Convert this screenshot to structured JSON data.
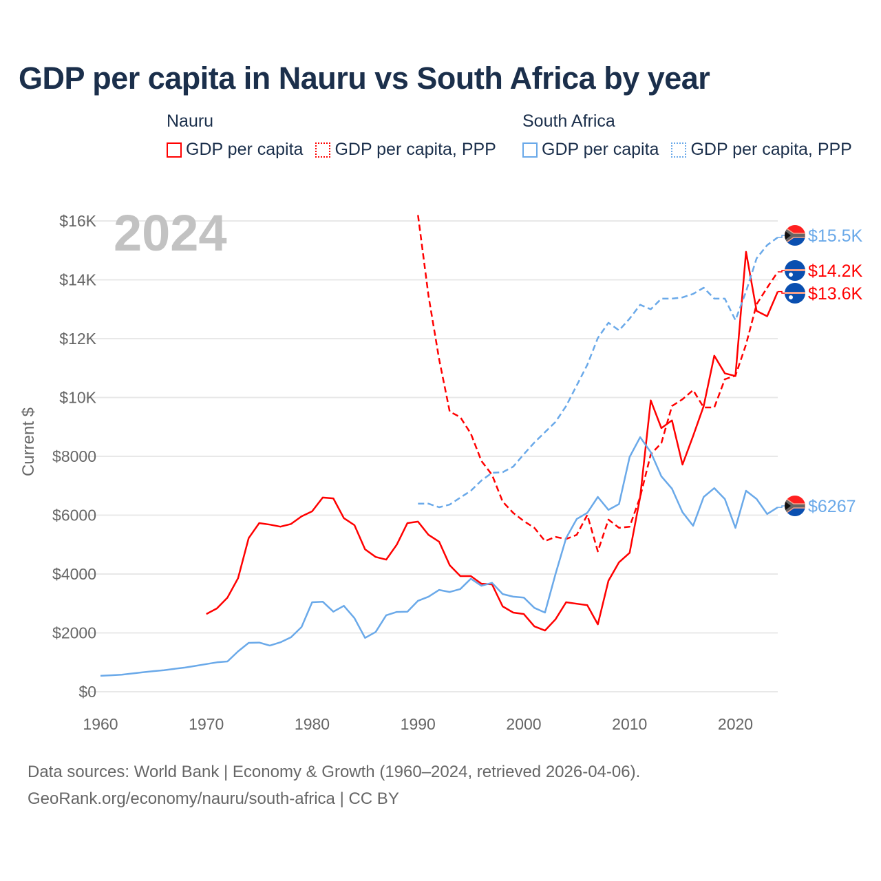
{
  "title": "GDP per capita in Nauru vs South Africa by year",
  "legend": [
    {
      "group": "Nauru",
      "items": [
        {
          "label": "GDP per capita",
          "style": "solid",
          "color": "#ff0000"
        },
        {
          "label": "GDP per capita, PPP",
          "style": "dotted",
          "color": "#ff0000"
        }
      ]
    },
    {
      "group": "South Africa",
      "items": [
        {
          "label": "GDP per capita",
          "style": "solid",
          "color": "#6aa9e9"
        },
        {
          "label": "GDP per capita, PPP",
          "style": "dotted",
          "color": "#6aa9e9"
        }
      ]
    }
  ],
  "current_year": "2024",
  "footer": {
    "line1": "Data sources: World Bank | Economy & Growth (1960–2024, retrieved 2026-04-06).",
    "line2": "GeoRank.org/economy/nauru/south-africa | CC BY"
  },
  "chart_data": {
    "type": "line",
    "title": "GDP per capita in Nauru vs South Africa by year",
    "xlabel": "",
    "ylabel": "Current $",
    "xlim": [
      1960,
      2024
    ],
    "ylim": [
      0,
      16000
    ],
    "x_ticks": [
      1960,
      1970,
      1980,
      1990,
      2000,
      2010,
      2020
    ],
    "x_tick_labels": [
      "1960",
      "1970",
      "1980",
      "1990",
      "2000",
      "2010",
      "2020"
    ],
    "y_ticks": [
      0,
      2000,
      4000,
      6000,
      8000,
      10000,
      12000,
      14000,
      16000
    ],
    "y_tick_labels": [
      "$0",
      "$2000",
      "$4000",
      "$6000",
      "$8000",
      "$10K",
      "$12K",
      "$14K",
      "$16K"
    ],
    "grid": true,
    "legend_position": "top",
    "series": [
      {
        "name": "Nauru GDP per capita",
        "country": "Nauru",
        "color": "#ff0000",
        "dash": false,
        "end_label": "$13.6K",
        "flag": "nauru",
        "start": 1970,
        "values": [
          2640,
          2830,
          3200,
          3860,
          5220,
          5730,
          5680,
          5610,
          5700,
          5960,
          6130,
          6600,
          6570,
          5900,
          5660,
          4840,
          4580,
          4490,
          5000,
          5730,
          5780,
          5330,
          5100,
          4300,
          3930,
          3930,
          3670,
          3650,
          2900,
          2690,
          2640,
          2220,
          2080,
          2460,
          3040,
          2990,
          2940,
          2290,
          3770,
          4400,
          4720,
          6620,
          9900,
          8960,
          9220,
          7720,
          8690,
          9710,
          11420,
          10820,
          10730,
          14950,
          12940,
          12760,
          13600
        ]
      },
      {
        "name": "Nauru GDP per capita, PPP",
        "country": "Nauru",
        "color": "#ff0000",
        "dash": true,
        "end_label": "$14.2K",
        "flag": "nauru",
        "start": 1990,
        "values": [
          16200,
          13450,
          11300,
          9520,
          9330,
          8770,
          7840,
          7370,
          6460,
          6080,
          5800,
          5570,
          5120,
          5260,
          5190,
          5330,
          6010,
          4770,
          5850,
          5570,
          5610,
          6620,
          8070,
          8450,
          9710,
          9940,
          10250,
          9660,
          9660,
          10620,
          10740,
          11800,
          13170,
          13730,
          14270
        ]
      },
      {
        "name": "South Africa GDP per capita",
        "country": "South Africa",
        "color": "#6aa9e9",
        "dash": false,
        "end_label": "$6267",
        "flag": "south-africa",
        "start": 1960,
        "values": [
          540,
          560,
          580,
          620,
          660,
          700,
          730,
          780,
          820,
          880,
          940,
          1000,
          1030,
          1370,
          1660,
          1670,
          1570,
          1680,
          1850,
          2200,
          3040,
          3060,
          2720,
          2920,
          2500,
          1830,
          2030,
          2600,
          2710,
          2720,
          3090,
          3230,
          3460,
          3390,
          3490,
          3840,
          3600,
          3700,
          3320,
          3230,
          3200,
          2850,
          2690,
          4000,
          5220,
          5870,
          6080,
          6620,
          6180,
          6380,
          7980,
          8650,
          8140,
          7320,
          6900,
          6100,
          5640,
          6620,
          6920,
          6550,
          5570,
          6830,
          6550,
          6040,
          6267
        ]
      },
      {
        "name": "South Africa GDP per capita, PPP",
        "country": "South Africa",
        "color": "#6aa9e9",
        "dash": true,
        "end_label": "$15.5K",
        "flag": "south-africa",
        "start": 1990,
        "values": [
          6390,
          6390,
          6270,
          6360,
          6600,
          6830,
          7180,
          7440,
          7460,
          7650,
          8070,
          8470,
          8820,
          9170,
          9710,
          10410,
          11110,
          12020,
          12540,
          12280,
          12680,
          13150,
          13000,
          13360,
          13360,
          13400,
          13520,
          13730,
          13360,
          13360,
          12630,
          13600,
          14730,
          15180,
          15440
        ]
      }
    ]
  }
}
